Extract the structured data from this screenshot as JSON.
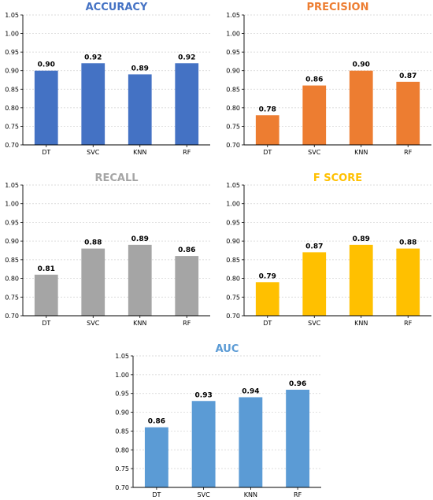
{
  "chart_data": [
    {
      "type": "bar",
      "title": "ACCURACY",
      "color": "#4472C4",
      "categories": [
        "DT",
        "SVC",
        "KNN",
        "RF"
      ],
      "values": [
        0.9,
        0.92,
        0.89,
        0.92
      ],
      "value_labels": [
        "0.90",
        "0.92",
        "0.89",
        "0.92"
      ],
      "ylim": [
        0.7,
        1.05
      ],
      "yticks": [
        "0.70",
        "0.75",
        "0.80",
        "0.85",
        "0.90",
        "0.95",
        "1.00",
        "1.05"
      ],
      "grid": "horizontal dotted",
      "xlabel": "",
      "ylabel": ""
    },
    {
      "type": "bar",
      "title": "PRECISION",
      "color": "#ED7D31",
      "categories": [
        "DT",
        "SVC",
        "KNN",
        "RF"
      ],
      "values": [
        0.78,
        0.86,
        0.9,
        0.87
      ],
      "value_labels": [
        "0.78",
        "0.86",
        "0.90",
        "0.87"
      ],
      "ylim": [
        0.7,
        1.05
      ],
      "yticks": [
        "0.70",
        "0.75",
        "0.80",
        "0.85",
        "0.90",
        "0.95",
        "1.00",
        "1.05"
      ],
      "grid": "horizontal dotted",
      "xlabel": "",
      "ylabel": ""
    },
    {
      "type": "bar",
      "title": "RECALL",
      "color": "#A5A5A5",
      "categories": [
        "DT",
        "SVC",
        "KNN",
        "RF"
      ],
      "values": [
        0.81,
        0.88,
        0.89,
        0.86
      ],
      "value_labels": [
        "0.81",
        "0.88",
        "0.89",
        "0.86"
      ],
      "ylim": [
        0.7,
        1.05
      ],
      "yticks": [
        "0.70",
        "0.75",
        "0.80",
        "0.85",
        "0.90",
        "0.95",
        "1.00",
        "1.05"
      ],
      "grid": "horizontal dotted",
      "xlabel": "",
      "ylabel": ""
    },
    {
      "type": "bar",
      "title": "F SCORE",
      "color": "#FFC000",
      "categories": [
        "DT",
        "SVC",
        "KNN",
        "RF"
      ],
      "values": [
        0.79,
        0.87,
        0.89,
        0.88
      ],
      "value_labels": [
        "0.79",
        "0.87",
        "0.89",
        "0.88"
      ],
      "ylim": [
        0.7,
        1.05
      ],
      "yticks": [
        "0.70",
        "0.75",
        "0.80",
        "0.85",
        "0.90",
        "0.95",
        "1.00",
        "1.05"
      ],
      "grid": "horizontal dotted",
      "xlabel": "",
      "ylabel": ""
    },
    {
      "type": "bar",
      "title": "AUC",
      "color": "#5B9BD5",
      "categories": [
        "DT",
        "SVC",
        "KNN",
        "RF"
      ],
      "values": [
        0.86,
        0.93,
        0.94,
        0.96
      ],
      "value_labels": [
        "0.86",
        "0.93",
        "0.94",
        "0.96"
      ],
      "ylim": [
        0.7,
        1.05
      ],
      "yticks": [
        "0.70",
        "0.75",
        "0.80",
        "0.85",
        "0.90",
        "0.95",
        "1.00",
        "1.05"
      ],
      "grid": "horizontal dotted",
      "xlabel": "",
      "ylabel": ""
    }
  ]
}
